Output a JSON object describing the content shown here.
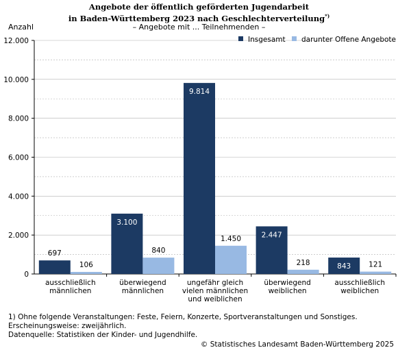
{
  "title_line1": "Angebote der öffentlich geförderten Jugendarbeit",
  "title_line2": "in Baden-Württemberg 2023 nach Geschlechterverteilung",
  "title_marker": "*)",
  "unit_label": "Anzahl",
  "subtitle": "– Angebote mit ... Teilnehmenden –",
  "footnotes": [
    "1) Ohne folgende Veranstaltungen: Feste, Feiern, Konzerte, Sportveranstaltungen und Sonstiges.",
    "Erscheinungsweise: zweijährlich.",
    "Datenquelle: Statistiken der Kinder- und Jugendhilfe."
  ],
  "copyright": "© Statistisches Landesamt Baden-Württemberg 2025",
  "colors": {
    "insgesamt": "#1c3a63",
    "offen": "#98b9e3",
    "grid": "#b0b0b0"
  },
  "chart_data": {
    "type": "bar",
    "categories": [
      [
        "ausschließlich",
        "männlichen"
      ],
      [
        "überwiegend",
        "männlichen"
      ],
      [
        "ungefähr gleich",
        "vielen männlichen",
        "und weiblichen"
      ],
      [
        "überwiegend",
        "weiblichen"
      ],
      [
        "ausschließlich",
        "weiblichen"
      ]
    ],
    "series": [
      {
        "name": "Insgesamt",
        "values": [
          697,
          3100,
          9814,
          2447,
          843
        ],
        "labels": [
          "697",
          "3.100",
          "9.814",
          "2.447",
          "843"
        ]
      },
      {
        "name": "darunter Offene Angebote",
        "values": [
          106,
          840,
          1450,
          218,
          121
        ],
        "labels": [
          "106",
          "840",
          "1.450",
          "218",
          "121"
        ]
      }
    ],
    "ylim": [
      0,
      12000
    ],
    "yticks": [
      0,
      2000,
      4000,
      6000,
      8000,
      10000,
      12000
    ],
    "ytick_labels": [
      "0",
      "2.000",
      "4.000",
      "6.000",
      "8.000",
      "10.000",
      "12.000"
    ],
    "grid": true,
    "legend_position": "top-right"
  }
}
